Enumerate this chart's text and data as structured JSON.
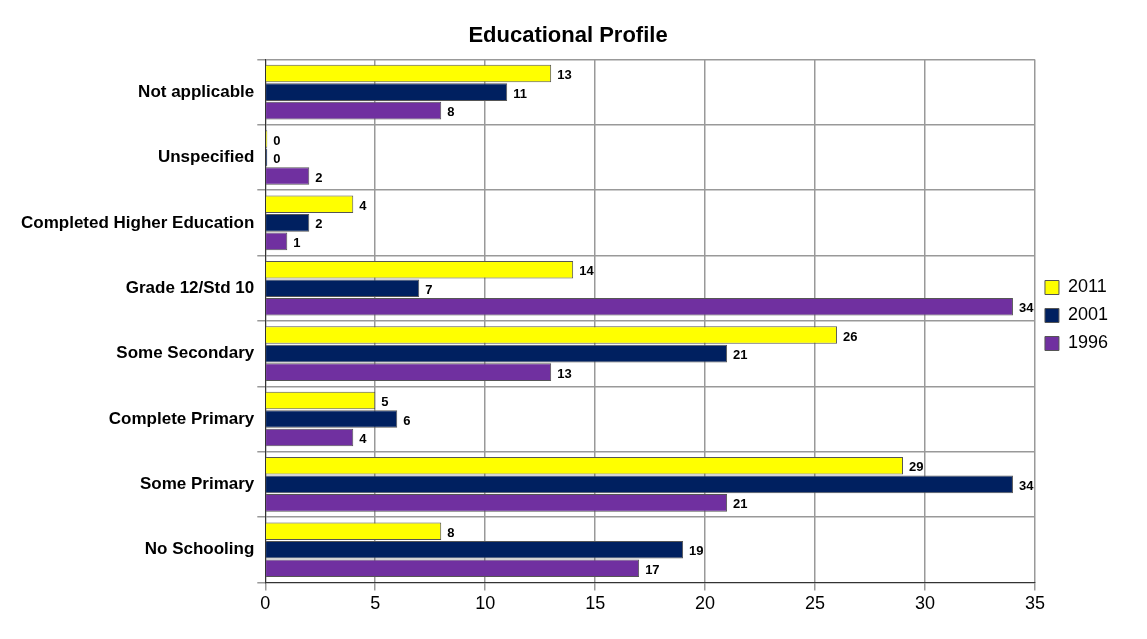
{
  "chart_data": {
    "type": "bar",
    "orientation": "horizontal",
    "title": "Educational Profile",
    "categories": [
      "Not applicable",
      "Unspecified",
      "Completed Higher Education",
      "Grade 12/Std 10",
      "Some Secondary",
      "Complete Primary",
      "Some Primary",
      "No Schooling"
    ],
    "series": [
      {
        "name": "2011",
        "color": "#ffff00",
        "values": [
          13,
          0,
          4,
          14,
          26,
          5,
          29,
          8
        ]
      },
      {
        "name": "2001",
        "color": "#002060",
        "values": [
          11,
          0,
          2,
          7,
          21,
          6,
          34,
          19
        ]
      },
      {
        "name": "1996",
        "color": "#7030a0",
        "values": [
          8,
          2,
          1,
          34,
          13,
          4,
          21,
          17
        ]
      }
    ],
    "xlim": [
      0,
      35
    ],
    "xticks": [
      0,
      5,
      10,
      15,
      20,
      25,
      30,
      35
    ],
    "grid": true,
    "legend": "right",
    "data_labels": true
  }
}
